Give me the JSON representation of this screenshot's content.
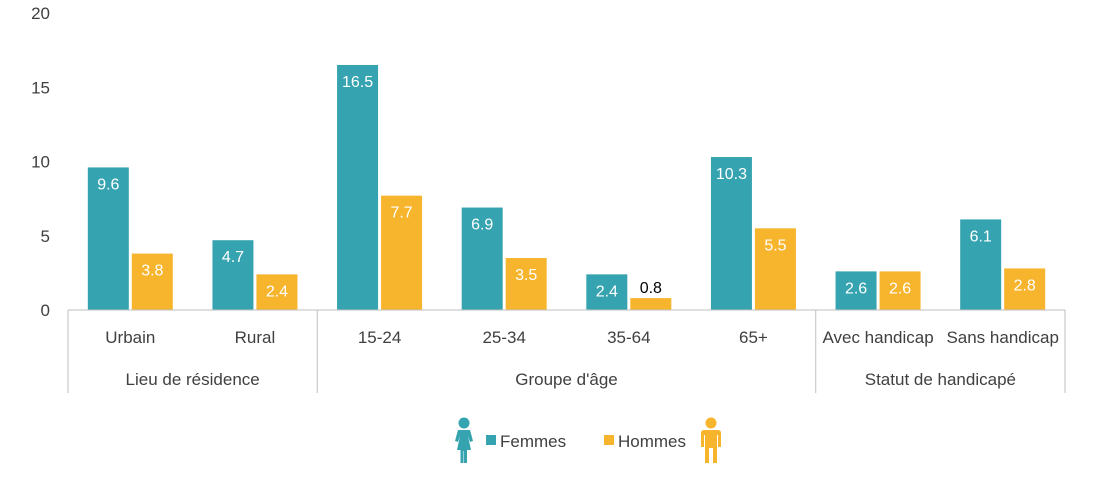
{
  "chart_data": {
    "type": "bar",
    "ylim": [
      0,
      20
    ],
    "yticks": [
      "0",
      "5",
      "10",
      "15",
      "20"
    ],
    "groups": [
      {
        "name": "Lieu de résidence",
        "categories": [
          "Urbain",
          "Rural"
        ]
      },
      {
        "name": "Groupe d'âge",
        "categories": [
          "15-24",
          "25-34",
          "35-64",
          "65+"
        ]
      },
      {
        "name": "Statut de handicapé",
        "categories": [
          "Avec handicap",
          "Sans handicap"
        ]
      }
    ],
    "categories": [
      "Urbain",
      "Rural",
      "15-24",
      "25-34",
      "35-64",
      "65+",
      "Avec handicap",
      "Sans handicap"
    ],
    "series": [
      {
        "name": "Femmes",
        "color": "#35A3B0",
        "values": [
          9.6,
          4.7,
          16.5,
          6.9,
          2.4,
          10.3,
          2.6,
          6.1
        ]
      },
      {
        "name": "Hommes",
        "color": "#F7B42D",
        "values": [
          3.8,
          2.4,
          7.7,
          3.5,
          0.8,
          5.5,
          2.6,
          2.8
        ]
      }
    ],
    "legend_position": "bottom",
    "legend_icons": [
      "woman-icon",
      "man-icon"
    ],
    "grid": false
  }
}
